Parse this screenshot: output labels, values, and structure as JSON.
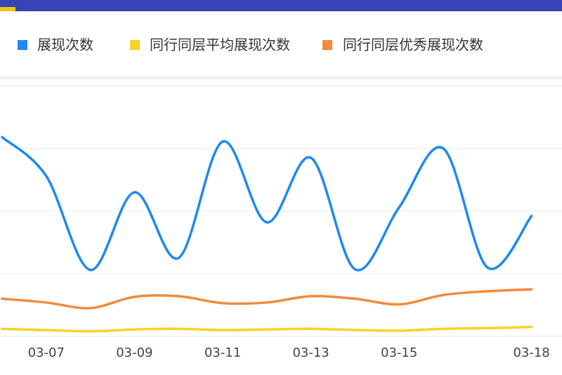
{
  "chart_data": {
    "type": "line",
    "categories": [
      null,
      "03-07",
      null,
      "03-09",
      null,
      "03-11",
      null,
      "03-13",
      null,
      "03-15",
      null,
      null,
      "03-18"
    ],
    "series": [
      {
        "name": "展现次数",
        "color": "#1e88f5",
        "values": [
          318,
          256,
          106,
          230,
          125,
          311,
          182,
          285,
          107,
          206,
          300,
          110,
          192
        ]
      },
      {
        "name": "同行同层平均展现次数",
        "color": "#f5d327",
        "values": [
          12,
          10,
          8,
          11,
          12,
          10,
          11,
          12,
          10,
          9,
          12,
          13,
          15
        ]
      },
      {
        "name": "同行同层优秀展现次数",
        "color": "#f5893a",
        "values": [
          60,
          54,
          45,
          63,
          64,
          53,
          54,
          64,
          60,
          51,
          66,
          72,
          75
        ]
      }
    ],
    "ylim": [
      0,
      400
    ]
  }
}
